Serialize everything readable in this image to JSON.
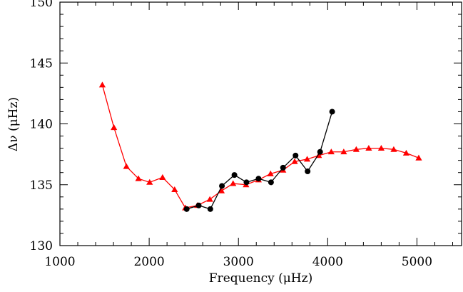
{
  "chart_data": {
    "type": "line",
    "xlabel": "Frequency (μHz)",
    "ylabel": "Δν (μHz)",
    "xlim": [
      1000,
      5500
    ],
    "ylim": [
      130,
      150
    ],
    "x_ticks": [
      1000,
      2000,
      3000,
      4000,
      5000
    ],
    "y_ticks": [
      130,
      135,
      140,
      145,
      150
    ],
    "grid": false,
    "series": [
      {
        "color": "#ff0000",
        "marker": "triangle",
        "x": [
          1475,
          1605,
          1745,
          1880,
          2005,
          2150,
          2285,
          2405,
          2540,
          2680,
          2810,
          2940,
          3085,
          3225,
          3360,
          3500,
          3630,
          3770,
          3900,
          4040,
          4180,
          4320,
          4460,
          4600,
          4740,
          4880,
          5020
        ],
        "y": [
          143.2,
          139.7,
          136.5,
          135.5,
          135.2,
          135.6,
          134.6,
          133.1,
          133.3,
          133.8,
          134.5,
          135.1,
          135.0,
          135.4,
          135.9,
          136.2,
          136.9,
          137.1,
          137.4,
          137.7,
          137.7,
          137.9,
          138.0,
          138.0,
          137.9,
          137.6,
          137.2
        ]
      },
      {
        "color": "#000000",
        "marker": "circle",
        "x": [
          2420,
          2555,
          2685,
          2815,
          2955,
          3090,
          3225,
          3365,
          3500,
          3640,
          3775,
          3915,
          4050
        ],
        "y": [
          133.0,
          133.3,
          133.0,
          134.9,
          135.8,
          135.2,
          135.5,
          135.2,
          136.4,
          137.4,
          136.1,
          137.7,
          141.0
        ]
      }
    ]
  }
}
